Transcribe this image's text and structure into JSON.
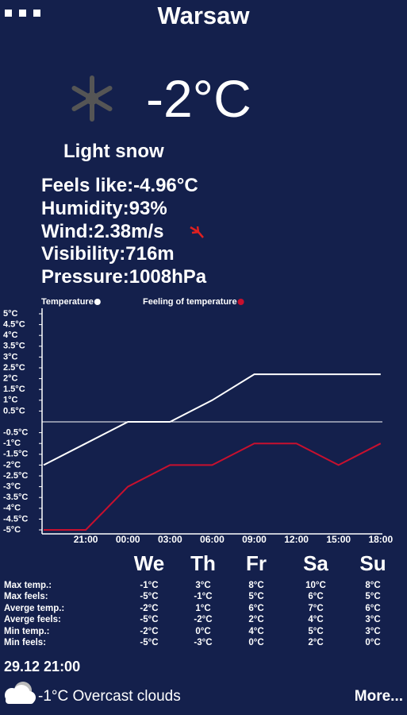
{
  "header": {
    "title": "Warsaw"
  },
  "current": {
    "temperature": "-2°C",
    "description": "Light snow",
    "details": [
      "Feels like:-4.96°C",
      "Humidity:93%",
      "Wind:2.38m/s",
      "Visibility:716m",
      "Pressure:1008hPa"
    ]
  },
  "chart_data": {
    "type": "line",
    "x": [
      null,
      "21:00",
      "00:00",
      "03:00",
      "06:00",
      "09:00",
      "12:00",
      "15:00",
      "18:00"
    ],
    "series": [
      {
        "name": "Temperature",
        "color": "#ffffff",
        "values": [
          -2,
          -1,
          0,
          0,
          1,
          2.2,
          2.2,
          2.2,
          2.2
        ]
      },
      {
        "name": "Feeling of temperature",
        "color": "#c8102e",
        "values": [
          -5,
          -5,
          -3,
          -2,
          -2,
          -1,
          -1,
          -2,
          -1
        ]
      }
    ],
    "ylim": [
      -5,
      5
    ],
    "yticks": [
      {
        "value": 5,
        "label": "5°C"
      },
      {
        "value": 4.5,
        "label": "4.5°C"
      },
      {
        "value": 4,
        "label": "4°C"
      },
      {
        "value": 3.5,
        "label": "3.5°C"
      },
      {
        "value": 3,
        "label": "3°C"
      },
      {
        "value": 2.5,
        "label": "2.5°C"
      },
      {
        "value": 2,
        "label": "2°C"
      },
      {
        "value": 1.5,
        "label": "1.5°C"
      },
      {
        "value": 1,
        "label": "1°C"
      },
      {
        "value": 0.5,
        "label": "0.5°C"
      },
      {
        "value": -0.5,
        "label": "-0.5°C"
      },
      {
        "value": -1,
        "label": "-1°C"
      },
      {
        "value": -1.5,
        "label": "-1.5°C"
      },
      {
        "value": -2,
        "label": "-2°C"
      },
      {
        "value": -2.5,
        "label": "-2.5°C"
      },
      {
        "value": -3,
        "label": "-3°C"
      },
      {
        "value": -3.5,
        "label": "-3.5°C"
      },
      {
        "value": -4,
        "label": "-4°C"
      },
      {
        "value": -4.5,
        "label": "-4.5°C"
      },
      {
        "value": -5,
        "label": "-5°C"
      }
    ]
  },
  "forecast": {
    "days": [
      "We",
      "Th",
      "Fr",
      "Sa",
      "Su"
    ],
    "rows": [
      {
        "label": "Max temp.:",
        "values": [
          "-1°C",
          "3°C",
          "8°C",
          "10°C",
          "8°C"
        ]
      },
      {
        "label": "Max feels:",
        "values": [
          "-5°C",
          "-1°C",
          "5°C",
          "6°C",
          "5°C"
        ]
      },
      {
        "label": "Averge temp.:",
        "values": [
          "-2°C",
          "1°C",
          "6°C",
          "7°C",
          "6°C"
        ]
      },
      {
        "label": "Averge feels:",
        "values": [
          "-5°C",
          "-2°C",
          "2°C",
          "4°C",
          "3°C"
        ]
      },
      {
        "label": "Min temp.:",
        "values": [
          "-2°C",
          "0°C",
          "4°C",
          "5°C",
          "3°C"
        ]
      },
      {
        "label": "Min feels:",
        "values": [
          "-5°C",
          "-3°C",
          "0°C",
          "2°C",
          "0°C"
        ]
      }
    ]
  },
  "footer": {
    "datetime": "29.12 21:00",
    "summary": "-1°C Overcast clouds",
    "more": "More..."
  }
}
